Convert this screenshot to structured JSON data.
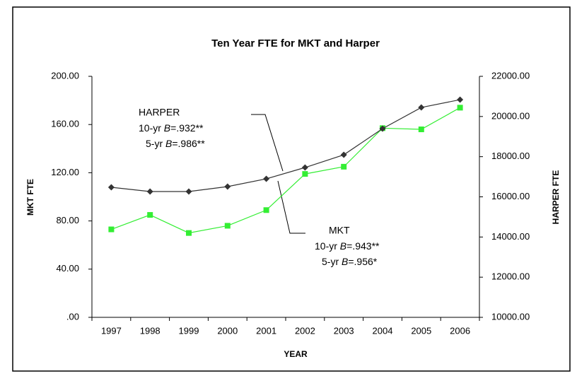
{
  "chart_data": {
    "type": "line",
    "title": "Ten Year FTE for MKT and Harper",
    "x_label": "YEAR",
    "y_label": "MKT FTE",
    "y2_label": "HARPER FTE",
    "categories": [
      "1997",
      "1998",
      "1999",
      "2000",
      "2001",
      "2002",
      "2003",
      "2004",
      "2005",
      "2006"
    ],
    "series": [
      {
        "name": "MKT",
        "color": "#33ee33",
        "marker": "square",
        "axis": "y",
        "values": [
          73,
          85,
          70,
          76,
          89,
          119,
          125,
          157,
          156,
          174
        ]
      },
      {
        "name": "HARPER",
        "color": "#333333",
        "marker": "diamond",
        "axis": "y2",
        "values": [
          16475,
          16263,
          16263,
          16510,
          16897,
          17460,
          18093,
          19395,
          20450,
          20837
        ]
      }
    ],
    "ylim": [
      0,
      200
    ],
    "yticks": [
      {
        "value": 0,
        "label": ".00"
      },
      {
        "value": 40,
        "label": "40.00"
      },
      {
        "value": 80,
        "label": "80.00"
      },
      {
        "value": 120,
        "label": "120.00"
      },
      {
        "value": 160,
        "label": "160.00"
      },
      {
        "value": 200,
        "label": "200.00"
      }
    ],
    "y2lim": [
      10000,
      22000
    ],
    "y2ticks": [
      {
        "value": 10000,
        "label": "10000.00"
      },
      {
        "value": 12000,
        "label": "12000.00"
      },
      {
        "value": 14000,
        "label": "14000.00"
      },
      {
        "value": 16000,
        "label": "16000.00"
      },
      {
        "value": 18000,
        "label": "18000.00"
      },
      {
        "value": 20000,
        "label": "20000.00"
      },
      {
        "value": 22000,
        "label": "22000.00"
      }
    ],
    "annotations": [
      {
        "title": "HARPER",
        "lines": [
          [
            "10-yr ",
            "B",
            "=.932**"
          ],
          [
            "5-yr ",
            "B",
            "=.986**"
          ]
        ]
      },
      {
        "title": "MKT",
        "lines": [
          [
            "10-yr ",
            "B",
            "=.943**"
          ],
          [
            "5-yr ",
            "B",
            "=.956*"
          ]
        ]
      }
    ]
  }
}
